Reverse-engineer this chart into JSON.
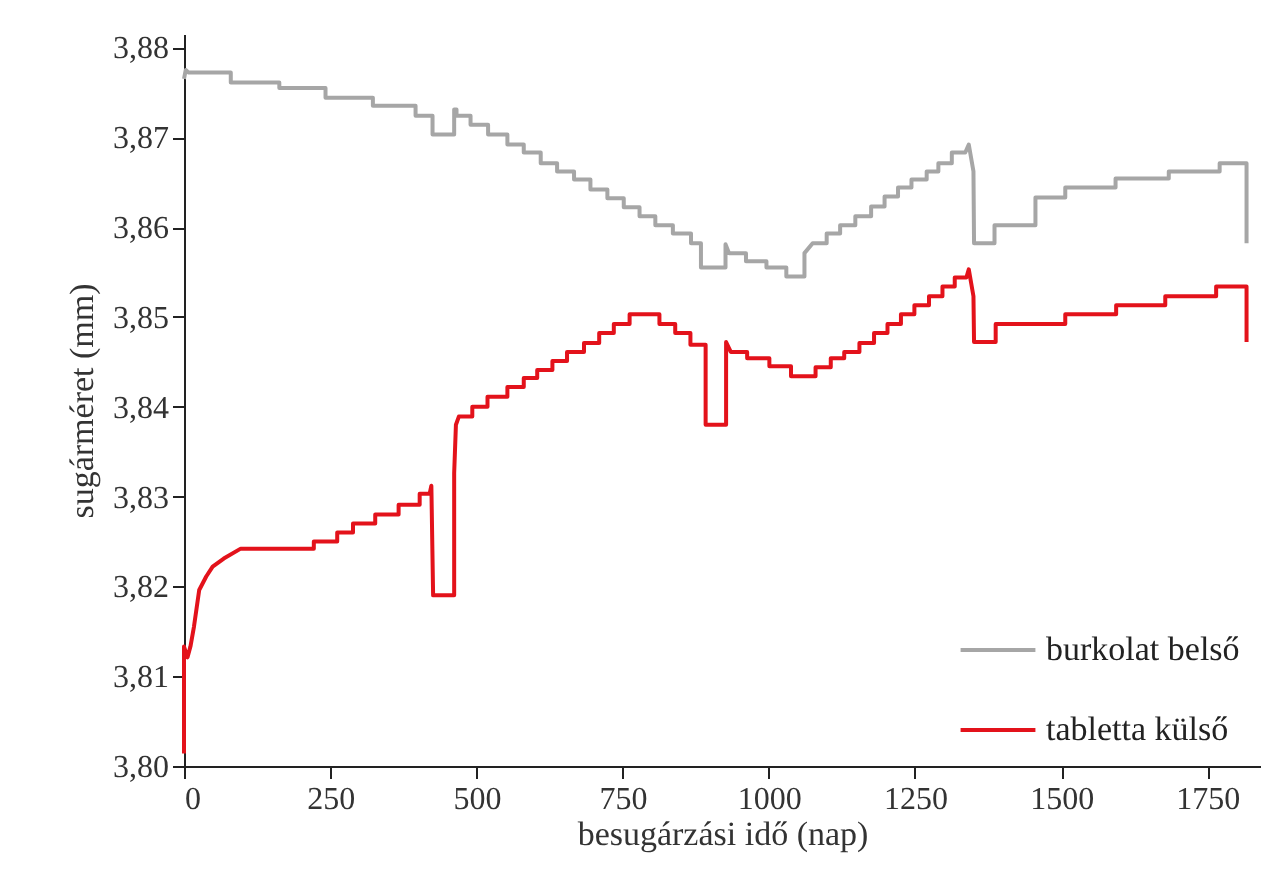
{
  "chart_data": {
    "type": "line",
    "xlabel": "besugárzási idő (nap)",
    "ylabel": "sugárméret (mm)",
    "xlim": [
      0,
      1840
    ],
    "xticks": [
      0,
      250,
      500,
      750,
      1000,
      1250,
      1500,
      1750
    ],
    "ylim": [
      3.8,
      3.8815
    ],
    "yticks": [
      {
        "value": 3.8,
        "label": "3,80"
      },
      {
        "value": 3.81,
        "label": "3,81"
      },
      {
        "value": 3.82,
        "label": "3,82"
      },
      {
        "value": 3.83,
        "label": "3,83"
      },
      {
        "value": 3.84,
        "label": "3,84"
      },
      {
        "value": 3.85,
        "label": "3,85"
      },
      {
        "value": 3.86,
        "label": "3,86"
      },
      {
        "value": 3.87,
        "label": "3,87"
      },
      {
        "value": 3.88,
        "label": "3,88"
      }
    ],
    "grid": false,
    "legend": "bottom right",
    "line_style": "solid",
    "series": [
      {
        "name": "burkolat belső",
        "color": "#a6a6a6",
        "x": [
          0,
          3,
          8,
          80,
          80,
          163,
          163,
          242,
          242,
          323,
          323,
          396,
          396,
          425,
          425,
          462,
          462,
          466,
          466,
          490,
          490,
          520,
          520,
          553,
          553,
          581,
          581,
          610,
          610,
          638,
          638,
          667,
          667,
          695,
          695,
          724,
          724,
          752,
          752,
          779,
          779,
          806,
          806,
          836,
          836,
          867,
          867,
          884,
          884,
          926,
          926,
          932,
          961,
          961,
          996,
          996,
          1030,
          1030,
          1061,
          1061,
          1075,
          1099,
          1099,
          1122,
          1122,
          1148,
          1148,
          1175,
          1175,
          1198,
          1198,
          1221,
          1221,
          1244,
          1244,
          1270,
          1270,
          1290,
          1290,
          1313,
          1313,
          1336,
          1342,
          1350,
          1351,
          1386,
          1386,
          1456,
          1456,
          1507,
          1507,
          1593,
          1593,
          1684,
          1684,
          1771,
          1771,
          1817,
          1817
        ],
        "values": [
          3.8765,
          3.8775,
          3.8772,
          3.8772,
          3.8761,
          3.8761,
          3.8755,
          3.8755,
          3.8744,
          3.8744,
          3.8735,
          3.8735,
          3.8724,
          3.8724,
          3.8703,
          3.8703,
          3.8731,
          3.8731,
          3.8724,
          3.8724,
          3.8714,
          3.8714,
          3.8703,
          3.8703,
          3.8692,
          3.8692,
          3.8683,
          3.8683,
          3.8671,
          3.8671,
          3.8662,
          3.8662,
          3.8653,
          3.8653,
          3.8642,
          3.8642,
          3.8632,
          3.8632,
          3.8622,
          3.8622,
          3.8612,
          3.8612,
          3.8602,
          3.8602,
          3.8593,
          3.8593,
          3.8582,
          3.8582,
          3.8555,
          3.8555,
          3.8581,
          3.8571,
          3.8571,
          3.8562,
          3.8562,
          3.8555,
          3.8555,
          3.8545,
          3.8545,
          3.8571,
          3.8582,
          3.8582,
          3.8593,
          3.8593,
          3.8602,
          3.8602,
          3.8612,
          3.8612,
          3.8623,
          3.8623,
          3.8634,
          3.8634,
          3.8644,
          3.8644,
          3.8653,
          3.8653,
          3.8662,
          3.8662,
          3.8671,
          3.8671,
          3.8683,
          3.8683,
          3.8692,
          3.8662,
          3.8582,
          3.8582,
          3.8602,
          3.8602,
          3.8633,
          3.8633,
          3.8644,
          3.8644,
          3.8654,
          3.8654,
          3.8662,
          3.8662,
          3.8671,
          3.8671,
          3.8582
        ]
      },
      {
        "name": "tabletta külső",
        "color": "#e3121b",
        "x": [
          0,
          0,
          6,
          11,
          17,
          26,
          38,
          49,
          68,
          97,
          222,
          222,
          262,
          262,
          289,
          289,
          327,
          327,
          367,
          367,
          403,
          403,
          420,
          423,
          426,
          462,
          462,
          465,
          470,
          493,
          493,
          519,
          519,
          553,
          553,
          581,
          581,
          604,
          604,
          630,
          630,
          655,
          655,
          684,
          684,
          710,
          710,
          735,
          735,
          762,
          762,
          813,
          813,
          840,
          840,
          866,
          866,
          892,
          892,
          927,
          927,
          935,
          963,
          963,
          1001,
          1001,
          1038,
          1038,
          1080,
          1080,
          1106,
          1106,
          1129,
          1129,
          1155,
          1155,
          1180,
          1180,
          1203,
          1203,
          1226,
          1226,
          1249,
          1249,
          1274,
          1274,
          1297,
          1297,
          1318,
          1318,
          1338,
          1342,
          1350,
          1351,
          1388,
          1388,
          1507,
          1507,
          1594,
          1594,
          1678,
          1678,
          1765,
          1765,
          1817,
          1817
        ],
        "values": [
          3.8014,
          3.8133,
          3.8121,
          3.8133,
          3.8155,
          3.8196,
          3.8211,
          3.8222,
          3.8231,
          3.8242,
          3.8242,
          3.825,
          3.825,
          3.826,
          3.826,
          3.827,
          3.827,
          3.828,
          3.828,
          3.8291,
          3.8291,
          3.8303,
          3.8303,
          3.8312,
          3.819,
          3.819,
          3.8326,
          3.838,
          3.8389,
          3.8389,
          3.84,
          3.84,
          3.8411,
          3.8411,
          3.8422,
          3.8422,
          3.8432,
          3.8432,
          3.8441,
          3.8441,
          3.8451,
          3.8451,
          3.8461,
          3.8461,
          3.8471,
          3.8471,
          3.8482,
          3.8482,
          3.8492,
          3.8492,
          3.8503,
          3.8503,
          3.8492,
          3.8492,
          3.8482,
          3.8482,
          3.8469,
          3.8469,
          3.838,
          3.838,
          3.8472,
          3.8461,
          3.8461,
          3.8454,
          3.8454,
          3.8445,
          3.8445,
          3.8434,
          3.8434,
          3.8444,
          3.8444,
          3.8454,
          3.8454,
          3.8461,
          3.8461,
          3.8471,
          3.8471,
          3.8482,
          3.8482,
          3.8492,
          3.8492,
          3.8503,
          3.8503,
          3.8513,
          3.8513,
          3.8523,
          3.8523,
          3.8534,
          3.8534,
          3.8544,
          3.8544,
          3.8553,
          3.8523,
          3.8472,
          3.8472,
          3.8492,
          3.8492,
          3.8503,
          3.8503,
          3.8513,
          3.8513,
          3.8523,
          3.8523,
          3.8534,
          3.8534,
          3.8472
        ]
      }
    ]
  }
}
